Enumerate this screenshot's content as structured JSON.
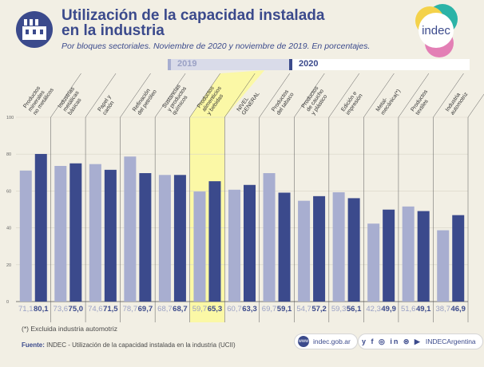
{
  "header": {
    "title_line1": "Utilización de la capacidad instalada",
    "title_line2": "en la industria",
    "subtitle": "Por bloques sectoriales. Noviembre de 2020 y noviembre de 2019. En porcentajes.",
    "logo_text": "indec"
  },
  "legend": {
    "year_a": "2019",
    "year_b": "2020"
  },
  "colors": {
    "bar_2019": "#a8aed0",
    "bar_2020": "#3b4a8c",
    "highlight": "#fbf8a6",
    "label_2019": "#9aa1c5",
    "label_2020": "#3b4a8c",
    "logo_teal": "#2bb3a7",
    "logo_yellow": "#f4d24a",
    "logo_pink": "#e37fb5"
  },
  "chart_data": {
    "type": "bar",
    "ylim": [
      0,
      100
    ],
    "yticks": [
      0,
      20,
      40,
      60,
      80,
      100
    ],
    "categories": [
      "Productos minerales no metálicos",
      "Industrias metálicas básicas",
      "Papel y cartón",
      "Refinación del petróleo",
      "Sustancias y productos químicos",
      "Productos alimenticios y bebidas",
      "NIVEL GENERAL",
      "Productos del tabaco",
      "Productos de caucho y plástico",
      "Edición e impresión",
      "Metal-mecánica(*)",
      "Productos textiles",
      "Industria automotriz"
    ],
    "category_lines": [
      [
        "Productos",
        "minerales",
        "no metálicos"
      ],
      [
        "Industrias",
        "metálicas",
        "básicas"
      ],
      [
        "Papel y",
        "cartón"
      ],
      [
        "Refinación",
        "del petróleo"
      ],
      [
        "Sustancias",
        "y productos",
        "químicos"
      ],
      [
        "Productos",
        "alimenticios",
        "y bebidas"
      ],
      [
        "NIVEL",
        "GENERAL"
      ],
      [
        "Productos",
        "del tabaco"
      ],
      [
        "Productos",
        "de caucho",
        "y plástico"
      ],
      [
        "Edición e",
        "impresión"
      ],
      [
        "Metal-",
        "mecánica(*)"
      ],
      [
        "Productos",
        "textiles"
      ],
      [
        "Industria",
        "automotriz"
      ]
    ],
    "highlight_category": "Productos alimenticios y bebidas",
    "series": [
      {
        "name": "2019",
        "values": [
          71.1,
          73.6,
          74.6,
          78.7,
          68.7,
          59.7,
          60.7,
          69.7,
          54.7,
          59.3,
          42.3,
          51.6,
          38.7
        ]
      },
      {
        "name": "2020",
        "values": [
          80.1,
          75.0,
          71.5,
          69.7,
          68.7,
          65.3,
          63.3,
          59.1,
          57.2,
          56.1,
          49.9,
          49.1,
          46.9
        ]
      }
    ],
    "value_labels_2019": [
      "71,1",
      "73,6",
      "74,6",
      "78,7",
      "68,7",
      "59,7",
      "60,7",
      "69,7",
      "54,7",
      "59,3",
      "42,3",
      "51,6",
      "38,7"
    ],
    "value_labels_2020": [
      "80,1",
      "75,0",
      "71,5",
      "69,7",
      "68,7",
      "65,3",
      "63,3",
      "59,1",
      "57,2",
      "56,1",
      "49,9",
      "49,1",
      "46,9"
    ]
  },
  "footer": {
    "note": "(*) Excluida industria automotriz",
    "source_label": "Fuente:",
    "source_text": "INDEC - Utilización de la capacidad instalada en la industria (UCII)",
    "web": "indec.gob.ar",
    "social_handle": "INDECArgentina",
    "social_icons": "y f ◎ in ⊜ ▶"
  }
}
